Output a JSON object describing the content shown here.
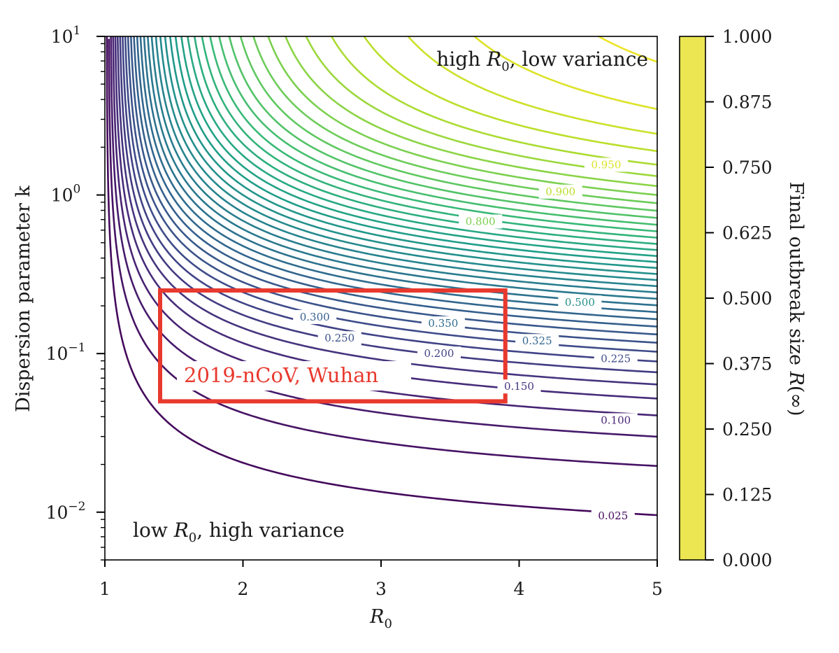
{
  "chart_data": {
    "type": "contour",
    "title": "",
    "xlabel_base": "R",
    "xlabel_sub": "0",
    "ylabel": "Dispersion parameter k",
    "xlim": [
      1,
      5
    ],
    "ylim": [
      0.005,
      10
    ],
    "yscale": "log",
    "x_ticks": [
      "1",
      "2",
      "3",
      "4",
      "5"
    ],
    "y_ticks": [
      {
        "value": 10,
        "base": "10",
        "exp": "1"
      },
      {
        "value": 1,
        "base": "10",
        "exp": "0"
      },
      {
        "value": 0.1,
        "base": "10",
        "exp": "−1"
      },
      {
        "value": 0.01,
        "base": "10",
        "exp": "−2"
      }
    ],
    "contour_levels_step": 0.025,
    "contour_level_range": [
      0.025,
      0.975
    ],
    "contour_labels": [
      {
        "text": "0.950",
        "x": 4.63,
        "k": 1.55
      },
      {
        "text": "0.900",
        "x": 4.3,
        "k": 1.05
      },
      {
        "text": "0.800",
        "x": 3.72,
        "k": 0.68
      },
      {
        "text": "0.500",
        "x": 4.44,
        "k": 0.21
      },
      {
        "text": "0.300",
        "x": 2.52,
        "k": 0.17
      },
      {
        "text": "0.350",
        "x": 3.45,
        "k": 0.155
      },
      {
        "text": "0.250",
        "x": 2.7,
        "k": 0.125
      },
      {
        "text": "0.325",
        "x": 4.13,
        "k": 0.12
      },
      {
        "text": "0.200",
        "x": 3.42,
        "k": 0.1
      },
      {
        "text": "0.225",
        "x": 4.7,
        "k": 0.093
      },
      {
        "text": "0.150",
        "x": 4.0,
        "k": 0.062
      },
      {
        "text": "0.100",
        "x": 4.7,
        "k": 0.038
      },
      {
        "text": "0.025",
        "x": 4.68,
        "k": 0.0095
      }
    ],
    "highlight_region": {
      "label": "2019-nCoV, Wuhan",
      "r0": [
        1.4,
        3.9
      ],
      "k": [
        0.05,
        0.25
      ],
      "color": "#e8392e"
    },
    "annotations": {
      "top_right": {
        "pre": "high ",
        "base": "R",
        "sub": "0",
        "post": ", low variance"
      },
      "bottom_left": {
        "pre": "low ",
        "base": "R",
        "sub": "0",
        "post": ", high variance"
      }
    },
    "colorbar": {
      "label_text": "Final outbreak size ",
      "label_math": "R",
      "label_arg": "(∞)",
      "range": [
        0,
        1
      ],
      "color": "#ebe651",
      "ticks": [
        "0.000",
        "0.125",
        "0.250",
        "0.375",
        "0.500",
        "0.625",
        "0.750",
        "0.875",
        "1.000"
      ]
    },
    "colormap": "viridis"
  }
}
